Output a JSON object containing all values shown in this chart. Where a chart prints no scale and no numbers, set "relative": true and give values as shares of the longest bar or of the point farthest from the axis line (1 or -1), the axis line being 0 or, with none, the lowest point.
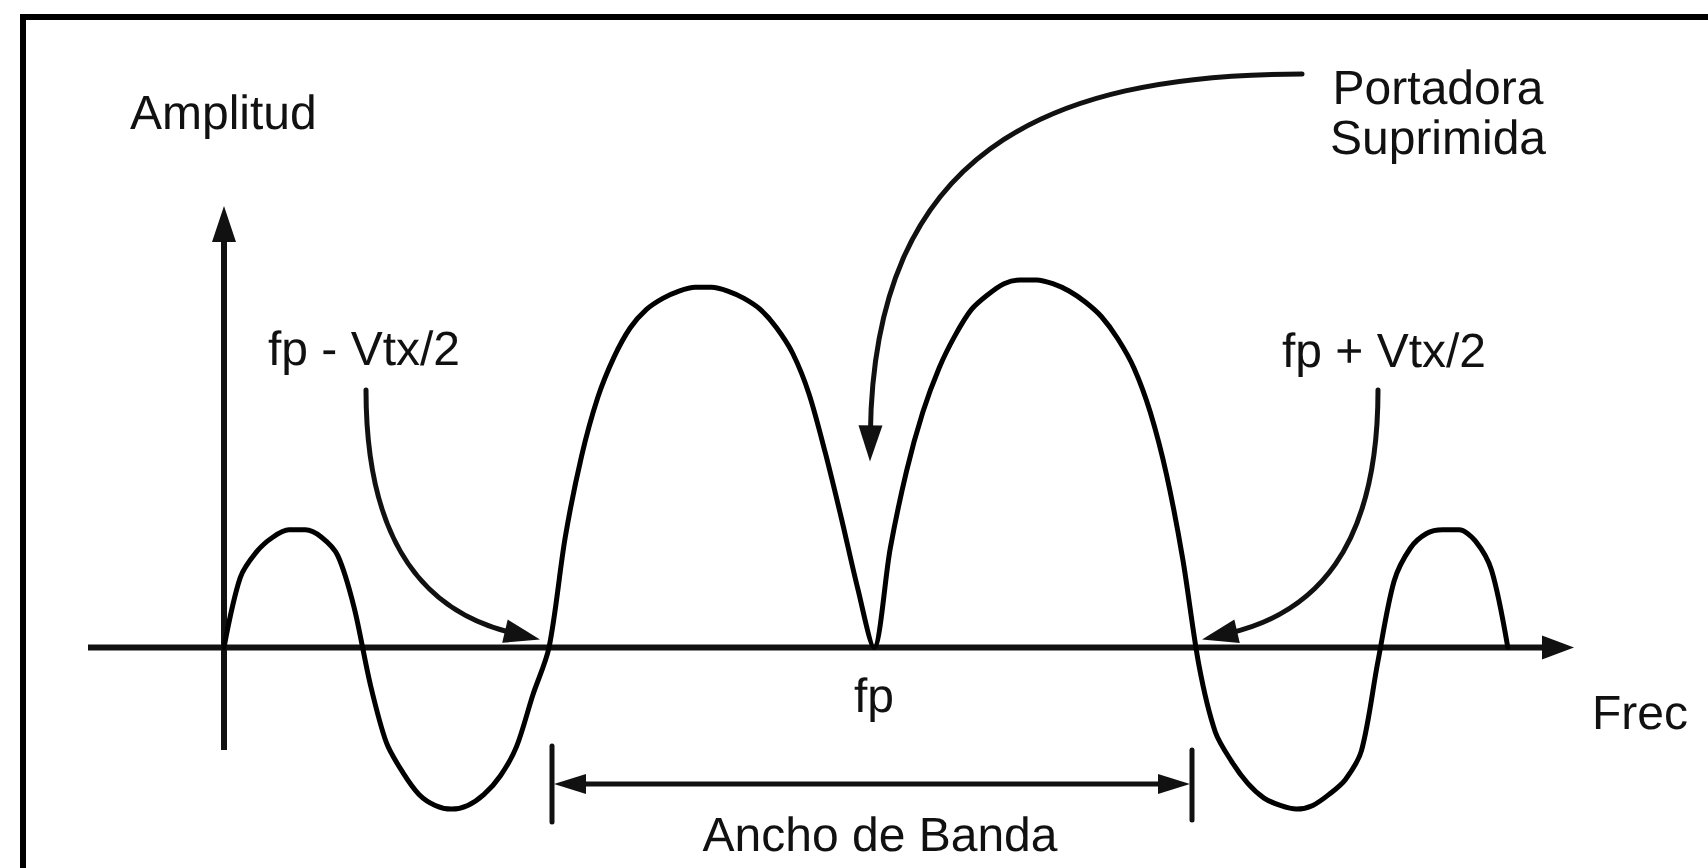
{
  "chart_data": {
    "type": "line",
    "relative": true,
    "marker": "none",
    "color": "#000000",
    "xlabel": "Frec",
    "ylabel": "Amplitud",
    "categories": [
      null,
      null,
      null,
      null,
      null,
      null,
      null,
      null,
      null,
      null,
      null,
      null,
      null,
      null,
      null,
      null,
      null,
      null,
      null,
      null,
      null,
      null,
      null,
      null,
      null,
      null,
      null,
      null,
      null,
      null,
      null,
      null,
      null,
      null,
      null,
      null,
      null,
      null,
      null,
      null,
      null,
      null,
      null,
      null,
      null,
      null,
      null,
      null,
      null,
      null,
      null,
      null,
      null,
      null,
      null,
      null,
      null,
      null,
      null,
      null,
      null,
      null,
      null,
      null,
      null,
      null,
      null,
      null,
      null,
      null,
      null,
      null,
      null,
      null,
      null,
      null,
      null,
      null,
      null,
      null
    ],
    "values": [
      0,
      0.19,
      0.26,
      0.3,
      0.32,
      0.32,
      0.3,
      0.25,
      0.11,
      -0.1,
      -0.26,
      -0.34,
      -0.4,
      -0.43,
      -0.44,
      -0.43,
      -0.4,
      -0.35,
      -0.27,
      -0.13,
      0,
      0.3,
      0.52,
      0.68,
      0.79,
      0.87,
      0.92,
      0.95,
      0.97,
      0.98,
      0.98,
      0.97,
      0.95,
      0.92,
      0.87,
      0.8,
      0.69,
      0.53,
      0.35,
      0.16,
      0,
      0.27,
      0.48,
      0.64,
      0.76,
      0.85,
      0.92,
      0.96,
      0.99,
      1,
      1,
      0.99,
      0.97,
      0.94,
      0.9,
      0.84,
      0.76,
      0.64,
      0.47,
      0.24,
      -0.05,
      -0.23,
      -0.31,
      -0.37,
      -0.41,
      -0.43,
      -0.44,
      -0.43,
      -0.4,
      -0.36,
      -0.28,
      -0.04,
      0.18,
      0.27,
      0.31,
      0.32,
      0.32,
      0.29,
      0.21,
      0
    ],
    "annotations": [
      "Portadora\nSuprimida",
      "fp - Vtx/2",
      "fp + Vtx/2",
      {
        "text": "fp",
        "y": 0
      },
      "Ancho de Banda"
    ]
  }
}
